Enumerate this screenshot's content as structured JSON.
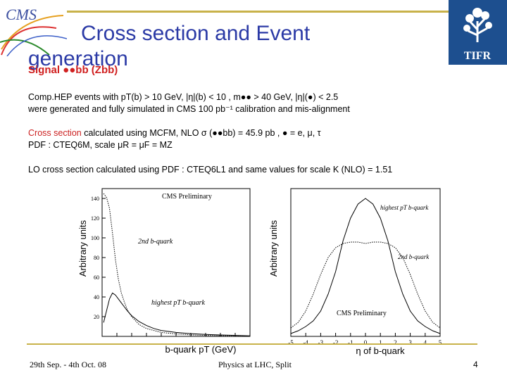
{
  "slide": {
    "title_line1": "Cross section and Event",
    "title_line2": "generation",
    "subtitle": "Signal ●●bb (Zbb) ‌",
    "line1": "Comp.HEP events with  pT(b) > 10 GeV, |η|(b) < 10 , m●● > 40 GeV, |η|(●) < 2.5",
    "line2": "were generated and fully  simulated in CMS  100 pb⁻¹ calibration and  mis-alignment",
    "xsec_label": "Cross section",
    "xsec_rest": " calculated using MCFM,  NLO σ (●●bb)  = 45.9 pb , ● = e, μ, τ",
    "pdf_line": "PDF : CTEQ6M,  scale μR = μF = MZ",
    "lo_line": "LO cross section calculated using PDF : CTEQ6L1 and same values for scale  K (NLO)  = 1.51"
  },
  "footer": {
    "date": "29th Sep. - 4th Oct.  08",
    "conference": "Physics at LHC, Split",
    "page": "4"
  },
  "logos": {
    "left": "CMS",
    "right": "TIFR"
  },
  "colors": {
    "title": "#2b3aa6",
    "accent": "#c8b24a",
    "red": "#cc2222",
    "tifr_bg": "#1d4f8f"
  },
  "chart_data": [
    {
      "type": "line",
      "ylabel": "Arbitrary units",
      "xlabel": "b-quark pT (GeV)",
      "watermark": "CMS Preliminary",
      "ylim": [
        0,
        150
      ],
      "yticks": [
        "20",
        "40",
        "60",
        "80",
        "100",
        "120",
        "140"
      ],
      "xticks": [
        "0",
        "20",
        "40",
        "60",
        "80",
        "100",
        "120",
        "140",
        "160",
        "180",
        "200"
      ],
      "series": [
        {
          "name": "2nd b-quark",
          "style": "dotted",
          "x": [
            2,
            6,
            10,
            14,
            18,
            22,
            26,
            30,
            34,
            40,
            50,
            60,
            70,
            80,
            100,
            120,
            140,
            160,
            180,
            200
          ],
          "values": [
            145,
            141,
            130,
            105,
            78,
            58,
            44,
            35,
            27,
            20,
            12,
            8,
            6,
            4,
            2.5,
            1.5,
            1,
            0.7,
            0.5,
            0.3
          ]
        },
        {
          "name": "highest pT b-quark",
          "style": "solid",
          "x": [
            2,
            6,
            10,
            14,
            18,
            22,
            26,
            30,
            34,
            40,
            50,
            60,
            70,
            80,
            100,
            120,
            140,
            160,
            180,
            200
          ],
          "values": [
            14,
            26,
            38,
            44,
            42,
            38,
            34,
            30,
            26,
            21,
            15,
            11,
            8,
            6,
            4,
            2.8,
            2,
            1.4,
            1,
            0.6
          ]
        }
      ],
      "labels": [
        "2nd b-quark",
        "highest pT b-quark"
      ]
    },
    {
      "type": "line",
      "ylabel": "Arbitrary units",
      "xlabel": "η of b-quark",
      "watermark": "CMS Preliminary",
      "xticks": [
        "-5",
        "-4",
        "-3",
        "-2",
        "-1",
        "0",
        "1",
        "2",
        "3",
        "4",
        "5"
      ],
      "series": [
        {
          "name": "highest pT b-quark",
          "style": "solid",
          "x": [
            -5,
            -4.5,
            -4,
            -3.5,
            -3,
            -2.5,
            -2,
            -1.5,
            -1,
            -0.5,
            0,
            0.5,
            1,
            1.5,
            2,
            2.5,
            3,
            3.5,
            4,
            4.5,
            5
          ],
          "values": [
            2,
            4,
            7,
            11,
            18,
            30,
            46,
            68,
            84,
            94,
            98,
            94,
            84,
            68,
            46,
            30,
            18,
            11,
            7,
            4,
            2
          ]
        },
        {
          "name": "2nd b-quark",
          "style": "dotted",
          "x": [
            -5,
            -4.5,
            -4,
            -3.5,
            -3,
            -2.5,
            -2,
            -1.5,
            -1,
            -0.5,
            0,
            0.5,
            1,
            1.5,
            2,
            2.5,
            3,
            3.5,
            4,
            4.5,
            5
          ],
          "values": [
            6,
            10,
            18,
            30,
            44,
            56,
            63,
            66,
            67,
            67,
            66,
            67,
            67,
            66,
            63,
            56,
            44,
            30,
            18,
            10,
            6
          ]
        }
      ],
      "labels": [
        "highest pT b-quark",
        "2nd b-quark"
      ]
    }
  ]
}
